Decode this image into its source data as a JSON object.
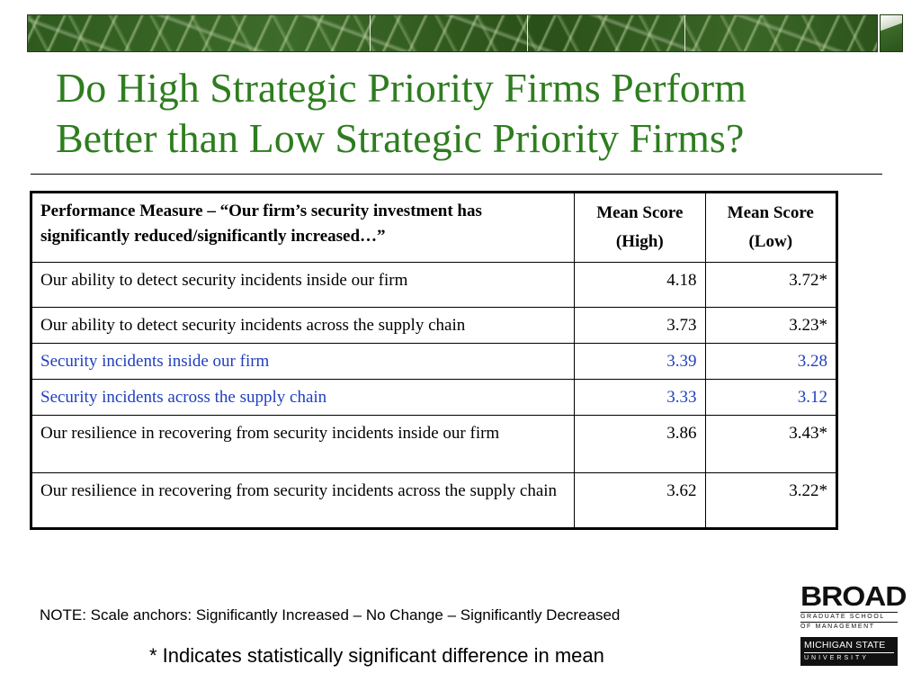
{
  "slide": {
    "title_line1": "Do High Strategic Priority Firms Perform",
    "title_line2": "Better than Low Strategic Priority Firms?",
    "title_color": "#2e7d1f",
    "highlight_color": "#1f3fbf"
  },
  "table": {
    "headers": {
      "measure": "Performance Measure – “Our firm’s security investment has significantly reduced/significantly increased…”",
      "high_line1": "Mean Score",
      "high_line2": "(High)",
      "low_line1": "Mean Score",
      "low_line2": "(Low)"
    },
    "rows": [
      {
        "measure": "Our ability to detect security incidents inside our firm",
        "high": "4.18",
        "low": "3.72*"
      },
      {
        "measure": "Our ability to detect security incidents across the supply chain",
        "high": "3.73",
        "low": "3.23*"
      },
      {
        "measure": "Security incidents inside our firm",
        "high": "3.39",
        "low": "3.28"
      },
      {
        "measure": "Security incidents across the supply chain",
        "high": "3.33",
        "low": "3.12"
      },
      {
        "measure": "Our resilience in recovering from security incidents inside our firm",
        "high": "3.86",
        "low": "3.43*"
      },
      {
        "measure": "Our resilience in recovering from security incidents across the supply chain",
        "high": "3.62",
        "low": "3.22*"
      }
    ]
  },
  "note": "NOTE: Scale anchors:  Significantly Increased – No Change – Significantly Decreased",
  "footnote": "* Indicates statistically significant difference in mean",
  "logo": {
    "broad": "BROAD",
    "graduate": "GRADUATE SCHOOL",
    "management": "OF MANAGEMENT",
    "msu": "MICHIGAN STATE",
    "university": "UNIVERSITY"
  }
}
